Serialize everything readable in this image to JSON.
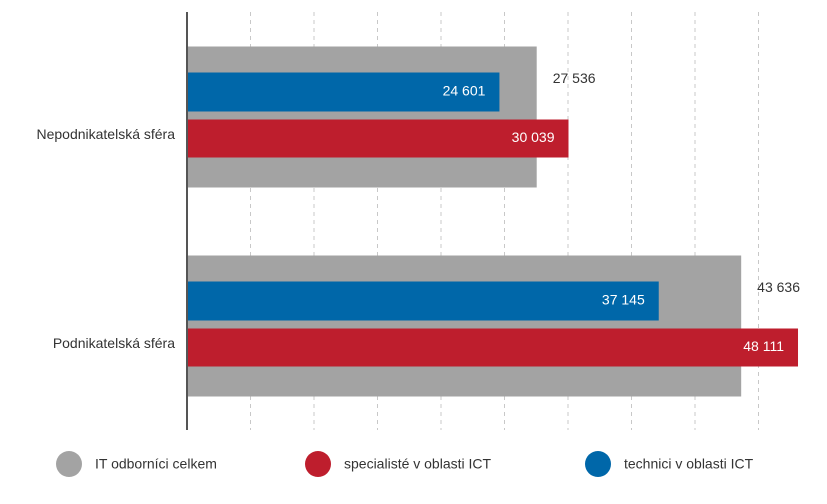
{
  "chart_data": {
    "type": "bar",
    "categories": [
      "Nepodnikatelská sféra",
      "Podnikatelská sféra"
    ],
    "series": [
      {
        "name": "IT odborníci celkem",
        "color": "#a3a3a3",
        "values": [
          27536,
          43636
        ],
        "value_labels": [
          "27 536",
          "43 636"
        ]
      },
      {
        "name": "specialisté v oblasti ICT",
        "color": "#be1e2d",
        "values": [
          30039,
          48111
        ],
        "value_labels": [
          "30 039",
          "48 111"
        ]
      },
      {
        "name": "technici v oblasti ICT",
        "color": "#0067a9",
        "values": [
          24601,
          37145
        ],
        "value_labels": [
          "24 601",
          "37 145"
        ]
      }
    ],
    "xlim": [
      0,
      50000
    ],
    "xticks": [
      0,
      5000,
      10000,
      15000,
      20000,
      25000,
      30000,
      35000,
      40000,
      45000
    ],
    "grid": true
  }
}
